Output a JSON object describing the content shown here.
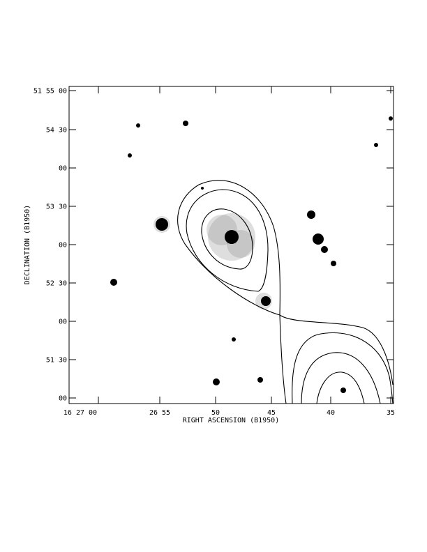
{
  "figure": {
    "xlabel": "RIGHT ASCENSION (B1950)",
    "ylabel": "DECLINATION (B1950)",
    "x_tick_labels": [
      "16 27 00",
      "26 55",
      "50",
      "45",
      "40",
      "35"
    ],
    "y_tick_labels": [
      "51 55 00",
      "54 30",
      "00",
      "53 30",
      "00",
      "52 30",
      "00",
      "51 30",
      "00"
    ]
  },
  "colors": {
    "background": "#ffffff",
    "ink": "#000000",
    "halo": "#8a8a8a"
  }
}
